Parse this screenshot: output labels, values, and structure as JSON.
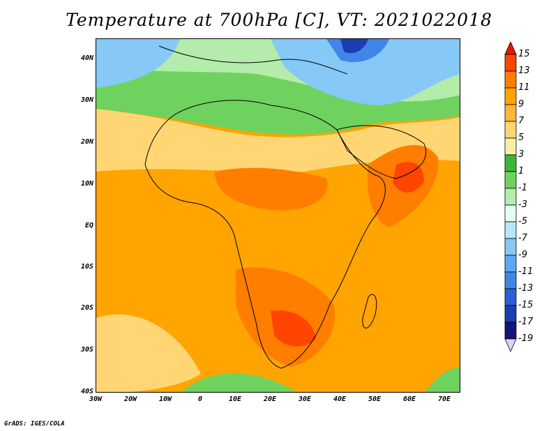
{
  "title": "Temperature at 700hPa [C], VT: 2021022018",
  "footer": "GrADS: IGES/COLA",
  "lat_labels": [
    "40N",
    "30N",
    "20N",
    "10N",
    "EQ",
    "10S",
    "20S",
    "30S",
    "40S"
  ],
  "lon_labels": [
    "30W",
    "20W",
    "10W",
    "0",
    "10E",
    "20E",
    "30E",
    "40E",
    "50E",
    "60E",
    "70E"
  ],
  "colorbar": {
    "labels": [
      "15",
      "13",
      "11",
      "9",
      "7",
      "5",
      "3",
      "1",
      "-1",
      "-3",
      "-5",
      "-7",
      "-9",
      "-11",
      "-13",
      "-15",
      "-17",
      "-19"
    ],
    "colors": [
      "#e21900",
      "#ff4500",
      "#ff7e00",
      "#ffa400",
      "#ffb637",
      "#ffd673",
      "#f8f0a6",
      "#3cb634",
      "#70d25e",
      "#b3ecab",
      "#e6faf4",
      "#b4e8f8",
      "#86c8f6",
      "#5ea8f1",
      "#3f86e8",
      "#2b60d5",
      "#1c3eb2",
      "#14147a",
      "#d6d6fa"
    ]
  },
  "map_domain": {
    "lon_range": [
      -30,
      75
    ],
    "lat_range": [
      -40,
      45
    ]
  }
}
